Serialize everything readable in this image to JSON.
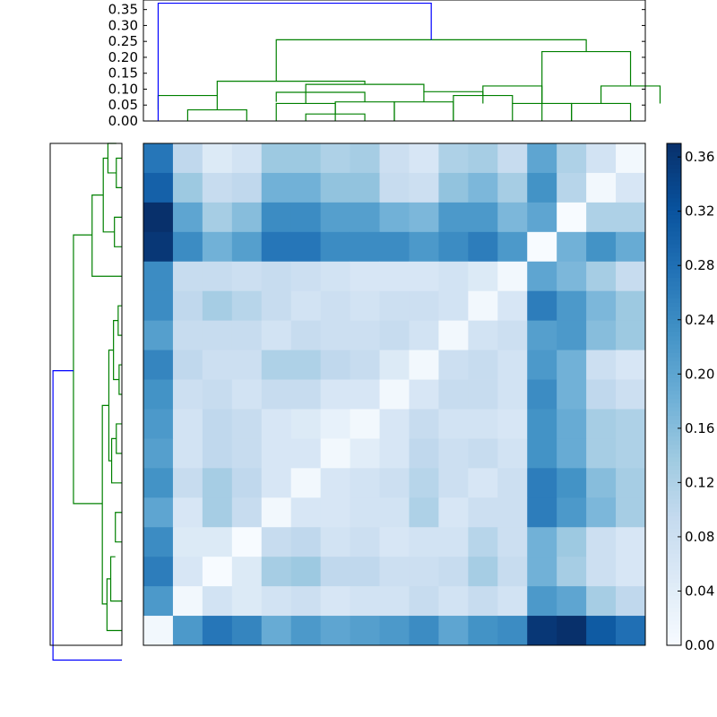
{
  "chart_data": [
    {
      "type": "dendrogram",
      "name": "top-dendrogram",
      "orientation": "top",
      "ylim": [
        0,
        0.38
      ],
      "yticks": [
        "0.00",
        "0.05",
        "0.10",
        "0.15",
        "0.20",
        "0.25",
        "0.30",
        "0.35"
      ],
      "ytick_values": [
        0,
        0.05,
        0.1,
        0.15,
        0.2,
        0.25,
        0.3,
        0.35
      ],
      "leaf_count": 17,
      "links": [
        {
          "xs": [
            12.5,
            12.5,
            14.5,
            14.5
          ],
          "ys": [
            0,
            0.055,
            0.055,
            0
          ],
          "color": "#008000"
        },
        {
          "xs": [
            11.5,
            11.5,
            13.5,
            13.5
          ],
          "ys": [
            0.055,
            0.11,
            0.11,
            0.055
          ],
          "color": "#008000"
        },
        {
          "xs": [
            6.5,
            6.5,
            8.5,
            8.5
          ],
          "ys": [
            0,
            0.06,
            0.06,
            0
          ],
          "color": "#008000"
        },
        {
          "xs": [
            4.5,
            4.5,
            7.5,
            7.5
          ],
          "ys": [
            0.06,
            0.09,
            0.09,
            0.06
          ],
          "color": "#008000"
        },
        {
          "xs": [
            1.5,
            1.5,
            3.5,
            3.5
          ],
          "ys": [
            0,
            0.035,
            0.035,
            0
          ],
          "color": "#008000"
        },
        {
          "xs": [
            0.5,
            0.5,
            2.5,
            2.5
          ],
          "ys": [
            0.035,
            0.08,
            0.08,
            0.035
          ],
          "color": "#008000"
        },
        {
          "xs": [
            5.5,
            5.5,
            7.5,
            7.5
          ],
          "ys": [
            0,
            0.022,
            0.022,
            0
          ],
          "color": "#008000"
        },
        {
          "xs": [
            4.5,
            4.5,
            6.5,
            6.5
          ],
          "ys": [
            0,
            0.055,
            0.055,
            0.022
          ],
          "color": "#008000"
        },
        {
          "xs": [
            5.5,
            5.5,
            9.5,
            9.5
          ],
          "ys": [
            0.055,
            0.115,
            0.115,
            0.092
          ],
          "color": "#008000"
        },
        {
          "xs": [
            8.5,
            8.5,
            10.5,
            10.5
          ],
          "ys": [
            0,
            0.06,
            0.06,
            0
          ],
          "color": "#008000"
        },
        {
          "xs": [
            9.5,
            9.5,
            11.5,
            11.5
          ],
          "ys": [
            0.06,
            0.092,
            0.092,
            0.08
          ],
          "color": "#008000"
        },
        {
          "xs": [
            10.5,
            10.5,
            12.5,
            12.5
          ],
          "ys": [
            0,
            0.08,
            0.08,
            0.055
          ],
          "color": "#008000"
        },
        {
          "xs": [
            2.5,
            2.5,
            7.5,
            7.5
          ],
          "ys": [
            0.08,
            0.125,
            0.125,
            0.115
          ],
          "color": "#008000"
        },
        {
          "xs": [
            14.5,
            14.5,
            16.5,
            16.5
          ],
          "ys": [
            0,
            0.055,
            0.055,
            0
          ],
          "color": "#008000"
        },
        {
          "xs": [
            15.5,
            15.5,
            17.5,
            17.5
          ],
          "ys": [
            0.055,
            0.11,
            0.11,
            0.055
          ],
          "color": "#008000"
        },
        {
          "xs": [
            13.5,
            13.5,
            16.5,
            16.5
          ],
          "ys": [
            0,
            0.218,
            0.218,
            0.11
          ],
          "color": "#008000"
        },
        {
          "xs": [
            4.5,
            4.5,
            15,
            15
          ],
          "ys": [
            0.125,
            0.255,
            0.255,
            0.218
          ],
          "color": "#008000"
        },
        {
          "xs": [
            0.5,
            0.5,
            9.75,
            9.75
          ],
          "ys": [
            0,
            0.37,
            0.37,
            0.255
          ],
          "color": "#0000ff"
        }
      ]
    },
    {
      "type": "dendrogram",
      "name": "left-dendrogram",
      "orientation": "left",
      "leaf_count": 17,
      "links": [
        {
          "ys": [
            0.5,
            0.5,
            1.5,
            1.5
          ],
          "xs": [
            0,
            0.03,
            0.03,
            0
          ],
          "color": "#008000"
        },
        {
          "ys": [
            0,
            0,
            1,
            1
          ],
          "xs": [
            0.03,
            0.075,
            0.075,
            0.03
          ],
          "color": "#008000"
        },
        {
          "ys": [
            2.5,
            2.5,
            3.5,
            3.5
          ],
          "xs": [
            0,
            0.04,
            0.04,
            0
          ],
          "color": "#008000"
        },
        {
          "ys": [
            0.5,
            0.5,
            3,
            3
          ],
          "xs": [
            0.075,
            0.1,
            0.1,
            0.04
          ],
          "color": "#008000"
        },
        {
          "ys": [
            1.75,
            1.75,
            4.5,
            4.5
          ],
          "xs": [
            0.1,
            0.16,
            0.16,
            0
          ],
          "color": "#008000"
        },
        {
          "ys": [
            5.5,
            5.5,
            6.5,
            6.5
          ],
          "xs": [
            0,
            0.02,
            0.02,
            0
          ],
          "color": "#008000"
        },
        {
          "ys": [
            7.5,
            7.5,
            8.5,
            8.5
          ],
          "xs": [
            0,
            0.015,
            0.015,
            0
          ],
          "color": "#008000"
        },
        {
          "ys": [
            6,
            6,
            8,
            8
          ],
          "xs": [
            0.02,
            0.045,
            0.045,
            0.015
          ],
          "color": "#008000"
        },
        {
          "ys": [
            9.5,
            9.5,
            10.5,
            10.5
          ],
          "xs": [
            0,
            0.03,
            0.03,
            0
          ],
          "color": "#008000"
        },
        {
          "ys": [
            10,
            10,
            11.5,
            11.5
          ],
          "xs": [
            0.03,
            0.055,
            0.055,
            0
          ],
          "color": "#008000"
        },
        {
          "ys": [
            7,
            7,
            10.75,
            10.75
          ],
          "xs": [
            0.045,
            0.07,
            0.07,
            0.055
          ],
          "color": "#008000"
        },
        {
          "ys": [
            12.5,
            12.5,
            13.5,
            13.5
          ],
          "xs": [
            0,
            0.035,
            0.035,
            0
          ],
          "color": "#008000"
        },
        {
          "ys": [
            14,
            14,
            15.5,
            15.5
          ],
          "xs": [
            0.035,
            0.06,
            0.06,
            0
          ],
          "color": "#008000"
        },
        {
          "ys": [
            14.75,
            14.75,
            16.5,
            16.5
          ],
          "xs": [
            0.06,
            0.08,
            0.08,
            0
          ],
          "color": "#008000"
        },
        {
          "ys": [
            8.875,
            8.875,
            15.6,
            15.6
          ],
          "xs": [
            0.07,
            0.105,
            0.105,
            0.08
          ],
          "color": "#008000"
        },
        {
          "ys": [
            3.1,
            3.1,
            12.2,
            12.2
          ],
          "xs": [
            0.16,
            0.26,
            0.26,
            0.105
          ],
          "color": "#008000"
        },
        {
          "ys": [
            7.7,
            7.7,
            17.5,
            17.5
          ],
          "xs": [
            0.26,
            0.37,
            0.37,
            0
          ],
          "color": "#0000ff"
        }
      ]
    },
    {
      "type": "heatmap",
      "name": "distance-matrix",
      "colormap": "Blues",
      "vmin": 0,
      "vmax": 0.37,
      "rows": 17,
      "cols": 17,
      "values": [
        [
          0.27,
          0.1,
          0.05,
          0.07,
          0.14,
          0.14,
          0.12,
          0.13,
          0.08,
          0.06,
          0.12,
          0.13,
          0.09,
          0.2,
          0.12,
          0.07,
          0.01
        ],
        [
          0.3,
          0.14,
          0.09,
          0.1,
          0.18,
          0.18,
          0.15,
          0.15,
          0.09,
          0.08,
          0.15,
          0.17,
          0.13,
          0.23,
          0.11,
          0.01,
          0.06
        ],
        [
          0.37,
          0.2,
          0.13,
          0.16,
          0.24,
          0.24,
          0.21,
          0.21,
          0.18,
          0.17,
          0.22,
          0.22,
          0.17,
          0.2,
          0.0,
          0.12,
          0.12
        ],
        [
          0.36,
          0.24,
          0.18,
          0.21,
          0.27,
          0.27,
          0.24,
          0.24,
          0.24,
          0.22,
          0.24,
          0.26,
          0.22,
          0.0,
          0.18,
          0.23,
          0.19
        ],
        [
          0.24,
          0.09,
          0.09,
          0.08,
          0.09,
          0.08,
          0.07,
          0.06,
          0.06,
          0.06,
          0.07,
          0.05,
          0.01,
          0.2,
          0.17,
          0.13,
          0.09
        ],
        [
          0.24,
          0.1,
          0.13,
          0.11,
          0.09,
          0.07,
          0.08,
          0.07,
          0.08,
          0.08,
          0.07,
          0.01,
          0.06,
          0.26,
          0.22,
          0.17,
          0.14
        ],
        [
          0.21,
          0.09,
          0.09,
          0.09,
          0.07,
          0.09,
          0.08,
          0.08,
          0.09,
          0.07,
          0.01,
          0.07,
          0.08,
          0.21,
          0.22,
          0.16,
          0.14
        ],
        [
          0.25,
          0.1,
          0.08,
          0.08,
          0.12,
          0.12,
          0.1,
          0.09,
          0.05,
          0.01,
          0.08,
          0.09,
          0.07,
          0.22,
          0.18,
          0.08,
          0.06
        ],
        [
          0.23,
          0.08,
          0.09,
          0.07,
          0.09,
          0.09,
          0.06,
          0.06,
          0.01,
          0.06,
          0.09,
          0.09,
          0.07,
          0.24,
          0.18,
          0.1,
          0.08
        ],
        [
          0.22,
          0.07,
          0.1,
          0.09,
          0.06,
          0.05,
          0.03,
          0.01,
          0.06,
          0.09,
          0.07,
          0.07,
          0.06,
          0.23,
          0.19,
          0.13,
          0.12
        ],
        [
          0.21,
          0.07,
          0.1,
          0.09,
          0.06,
          0.06,
          0.01,
          0.04,
          0.06,
          0.1,
          0.08,
          0.09,
          0.07,
          0.23,
          0.19,
          0.13,
          0.12
        ],
        [
          0.23,
          0.09,
          0.13,
          0.1,
          0.06,
          0.01,
          0.06,
          0.07,
          0.08,
          0.11,
          0.08,
          0.06,
          0.08,
          0.26,
          0.23,
          0.16,
          0.13
        ],
        [
          0.2,
          0.06,
          0.13,
          0.09,
          0.01,
          0.06,
          0.06,
          0.07,
          0.07,
          0.12,
          0.06,
          0.08,
          0.08,
          0.26,
          0.22,
          0.17,
          0.13
        ],
        [
          0.24,
          0.05,
          0.05,
          0.0,
          0.09,
          0.1,
          0.07,
          0.08,
          0.06,
          0.07,
          0.07,
          0.11,
          0.08,
          0.18,
          0.14,
          0.08,
          0.06
        ],
        [
          0.26,
          0.06,
          0.0,
          0.05,
          0.13,
          0.14,
          0.1,
          0.1,
          0.08,
          0.08,
          0.09,
          0.13,
          0.09,
          0.18,
          0.13,
          0.08,
          0.06
        ],
        [
          0.22,
          0.01,
          0.07,
          0.05,
          0.07,
          0.08,
          0.06,
          0.07,
          0.07,
          0.09,
          0.07,
          0.09,
          0.07,
          0.22,
          0.2,
          0.13,
          0.1
        ],
        [
          0.01,
          0.22,
          0.27,
          0.25,
          0.19,
          0.22,
          0.2,
          0.21,
          0.22,
          0.24,
          0.2,
          0.23,
          0.24,
          0.36,
          0.37,
          0.31,
          0.28
        ]
      ]
    },
    {
      "type": "colorbar",
      "name": "colorbar",
      "colormap": "Blues",
      "range": [
        0,
        0.37
      ],
      "ticks": [
        "0.00",
        "0.04",
        "0.08",
        "0.12",
        "0.16",
        "0.20",
        "0.24",
        "0.28",
        "0.32",
        "0.36"
      ],
      "tick_values": [
        0,
        0.04,
        0.08,
        0.12,
        0.16,
        0.2,
        0.24,
        0.28,
        0.32,
        0.36
      ]
    }
  ],
  "colors": {
    "cluster": "#008000",
    "root": "#0000ff",
    "axes": "#000000"
  }
}
